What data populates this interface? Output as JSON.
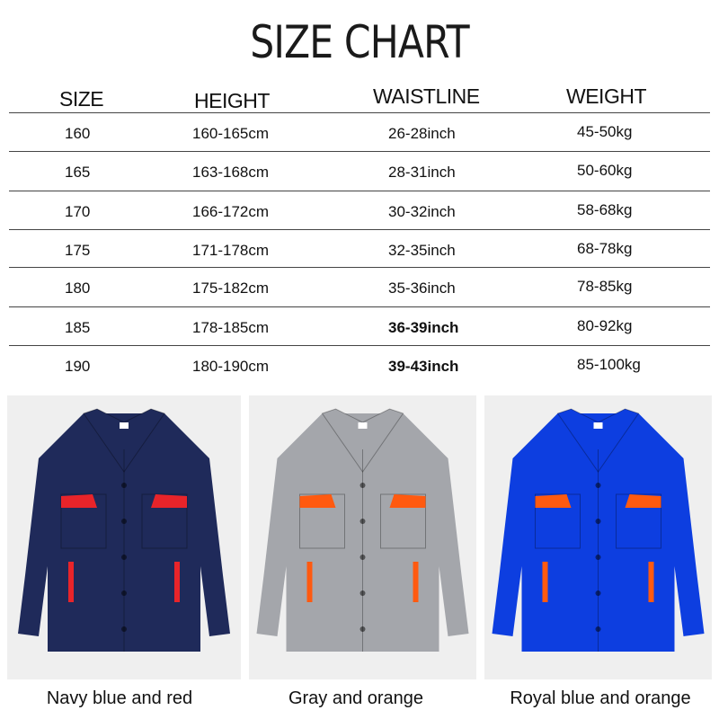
{
  "title": "SIZE CHART",
  "headers": [
    "SIZE",
    "HEIGHT",
    "WAISTLINE",
    "WEIGHT"
  ],
  "rows": [
    [
      "160",
      "160-165cm",
      "26-28inch",
      "45-50kg"
    ],
    [
      "165",
      "163-168cm",
      "28-31inch",
      "50-60kg"
    ],
    [
      "170",
      "166-172cm",
      "30-32inch",
      "58-68kg"
    ],
    [
      "175",
      "171-178cm",
      "32-35inch",
      "68-78kg"
    ],
    [
      "180",
      "175-182cm",
      "35-36inch",
      "78-85kg"
    ],
    [
      "185",
      "178-185cm",
      "36-39inch",
      "80-92kg"
    ],
    [
      "190",
      "180-190cm",
      "39-43inch",
      "85-100kg"
    ]
  ],
  "products": [
    {
      "caption": "Navy blue and red",
      "body_color": "#1f2a5a",
      "accent_color": "#e8242a"
    },
    {
      "caption": "Gray and orange",
      "body_color": "#a4a6ab",
      "accent_color": "#ff5a10"
    },
    {
      "caption": "Royal blue and orange",
      "body_color": "#0d3ee0",
      "accent_color": "#ff5a10"
    }
  ]
}
